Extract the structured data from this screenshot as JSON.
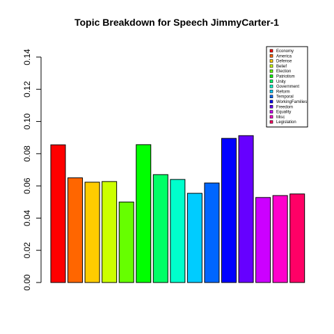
{
  "chart_data": {
    "type": "bar",
    "title": "Topic Breakdown for Speech JimmyCarter-1",
    "xlabel": "",
    "ylabel": "",
    "ylim": [
      0,
      0.14
    ],
    "yticks": [
      "0.00",
      "0.02",
      "0.04",
      "0.06",
      "0.08",
      "0.10",
      "0.12",
      "0.14"
    ],
    "grid": false,
    "legend_position": "top-right",
    "categories": [
      "Economy",
      "America",
      "Defense",
      "Belief",
      "Election",
      "Patriotism",
      "Unity",
      "Government",
      "Reform",
      "Temporal",
      "WorkingFamilies",
      "Freedom",
      "Equality",
      "Misc",
      "Legislation"
    ],
    "values": [
      0.0855,
      0.065,
      0.0623,
      0.0627,
      0.05,
      0.0856,
      0.067,
      0.064,
      0.0554,
      0.0618,
      0.0895,
      0.0912,
      0.0528,
      0.054,
      0.055
    ],
    "colors": [
      "#FF0000",
      "#FF6600",
      "#FFCC00",
      "#CCFF00",
      "#66FF00",
      "#00FF00",
      "#00FF66",
      "#00FFCC",
      "#00CCFF",
      "#0066FF",
      "#0000FF",
      "#6600FF",
      "#CC00FF",
      "#FF00CC",
      "#FF0066"
    ]
  }
}
